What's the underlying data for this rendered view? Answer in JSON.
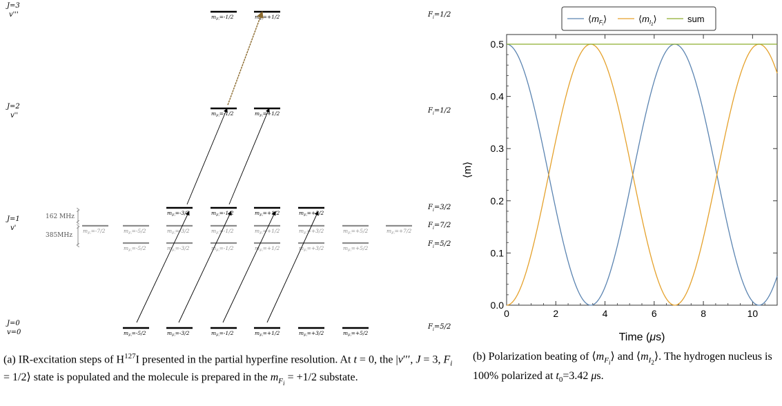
{
  "diagram": {
    "state_labels": [
      {
        "j": "J=3",
        "v": "v'''"
      },
      {
        "j": "J=2",
        "v": "v''"
      },
      {
        "j": "J=1",
        "v": "v'"
      },
      {
        "j": "J=0",
        "v": "v=0"
      }
    ],
    "fi_labels": [
      "F",
      "F",
      "F",
      "F",
      "F",
      "F"
    ],
    "fi_values": [
      "=1/2",
      "=1/2",
      "=3/2",
      "=7/2",
      "=5/2",
      "=5/2"
    ],
    "splitting_labels": [
      "162 MHz",
      "385MHz"
    ],
    "level_labels": {
      "j3": [
        "=-1/2",
        "=+1/2"
      ],
      "j2": [
        "=-1/2",
        "=+1/2"
      ],
      "j1_top": [
        "=-3/2",
        "=-1/2",
        "=+1/2",
        "=+3/2"
      ],
      "j1_mid": [
        "=-7/2",
        "=-5/2",
        "=-3/2",
        "=-1/2",
        "=+1/2",
        "=+3/2",
        "=+5/2",
        "=+7/2"
      ],
      "j1_low": [
        "=-5/2",
        "=-3/2",
        "=-1/2",
        "=+1/2",
        "=+3/2",
        "=+5/2"
      ],
      "j0": [
        "=-5/2",
        "=-3/2",
        "=-1/2",
        "=+1/2",
        "=+3/2",
        "=+5/2"
      ]
    },
    "colors": {
      "dark": "#000000",
      "gray": "#8c8c8c",
      "brown_arrow": "#8B6A2E"
    }
  },
  "chart_data": {
    "type": "line",
    "legend_position": "top",
    "xlabel": "Time (μs)",
    "ylabel": "⟨m⟩",
    "xlim": [
      0,
      11
    ],
    "ylim": [
      0,
      0.5
    ],
    "xticks": [
      "0",
      "2",
      "4",
      "6",
      "8",
      "10"
    ],
    "yticks": [
      "0.0",
      "0.1",
      "0.2",
      "0.3",
      "0.4",
      "0.5"
    ],
    "series": [
      {
        "name": "⟨mFi⟩",
        "color": "#5B84B1",
        "period": 6.84,
        "values_at_peaks": {
          "x": [
            0,
            6.84
          ],
          "y": [
            0.5,
            0.5
          ]
        },
        "values_at_troughs": {
          "x": [
            3.42,
            10.26
          ],
          "y": [
            0,
            0
          ]
        }
      },
      {
        "name": "⟨mI2⟩",
        "color": "#E5A12B",
        "period": 6.84,
        "values_at_peaks": {
          "x": [
            3.42,
            10.26
          ],
          "y": [
            0.5,
            0.5
          ]
        },
        "values_at_troughs": {
          "x": [
            0,
            6.84
          ],
          "y": [
            0,
            0
          ]
        }
      },
      {
        "name": "sum",
        "color": "#8DAE2E",
        "constant": 0.5
      }
    ]
  },
  "captions": {
    "a": "(a) IR-excitation steps of H¹²⁷I presented in the partial hyperfine resolution. At t = 0, the |ν′′′, J = 3, Fᵢ = 1/2⟩ state is populated and the molecule is prepared in the m_Fᵢ = +1/2 substate.",
    "b": "(b) Polarization beating of ⟨m_Fᵢ⟩ and ⟨m_I₂⟩. The hydrogen nucleus is 100% polarized at t₀=3.42 μs."
  }
}
